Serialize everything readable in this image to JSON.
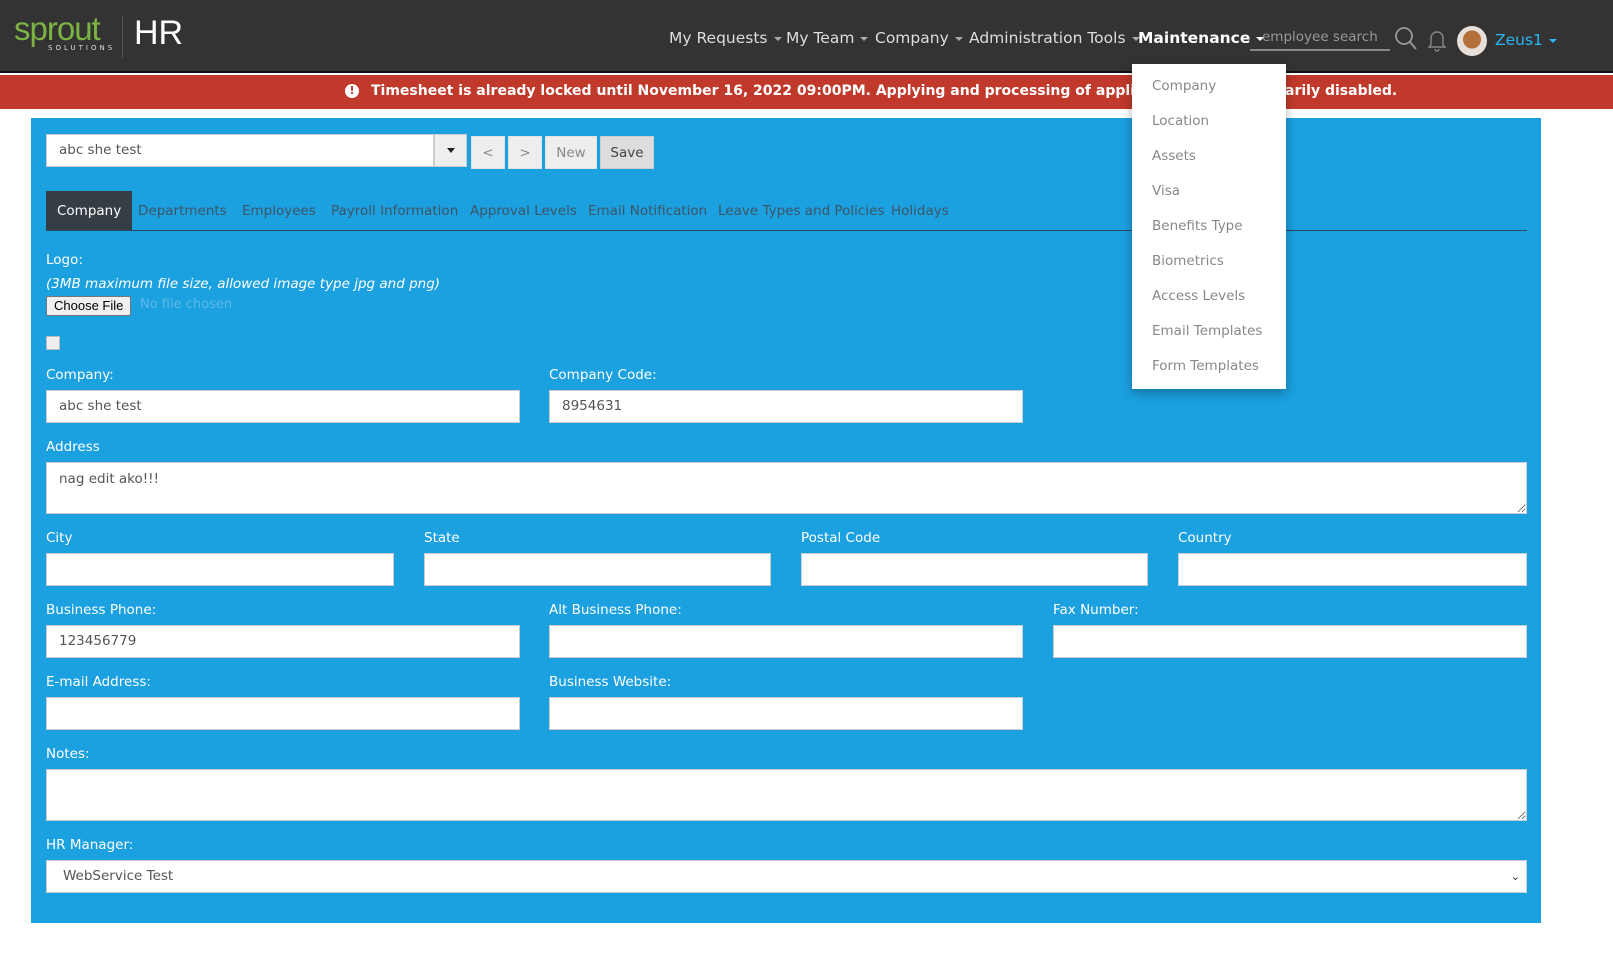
{
  "header": {
    "logo_main": "sprout",
    "logo_sub": "SOLUTIONS",
    "product": "HR",
    "nav": [
      {
        "label": "My Requests"
      },
      {
        "label": "My Team"
      },
      {
        "label": "Company"
      },
      {
        "label": "Administration Tools"
      },
      {
        "label": "Maintenance",
        "active": true
      }
    ],
    "search_placeholder": "employee search",
    "user": "Zeus1"
  },
  "banner": {
    "text": "Timesheet is already locked until November 16, 2022 09:00PM. Applying and processing of applications are temporarily disabled."
  },
  "maintenance_menu": [
    "Company",
    "Location",
    "Assets",
    "Visa",
    "Benefits Type",
    "Biometrics",
    "Access Levels",
    "Email Templates",
    "Form Templates"
  ],
  "toolbar": {
    "selected_company": "abc she test",
    "prev": "<",
    "next": ">",
    "new": "New",
    "save": "Save"
  },
  "tabs": [
    "Company",
    "Departments",
    "Employees",
    "Payroll Information",
    "Approval Levels",
    "Email Notification",
    "Leave Types and Policies",
    "Holidays"
  ],
  "form": {
    "logo_label": "Logo:",
    "logo_hint": "(3MB maximum file size, allowed image type jpg and png)",
    "choose_file": "Choose File",
    "no_file": "No file chosen",
    "company_label": "Company:",
    "company": "abc she test",
    "code_label": "Company Code:",
    "code": "8954631",
    "address_label": "Address",
    "address": "nag edit ako!!!",
    "city_label": "City",
    "state_label": "State",
    "postal_label": "Postal Code",
    "country_label": "Country",
    "phone_label": "Business Phone:",
    "phone": "123456779",
    "alt_phone_label": "Alt Business Phone:",
    "fax_label": "Fax Number:",
    "email_label": "E-mail Address:",
    "website_label": "Business Website:",
    "notes_label": "Notes:",
    "hr_label": "HR Manager:",
    "hr_manager": "WebService Test"
  },
  "colors": {
    "header": "#333333",
    "banner": "#c0392b",
    "panel": "#1ba0e0",
    "brand_green": "#7cb342",
    "user": "#29b6f6"
  }
}
